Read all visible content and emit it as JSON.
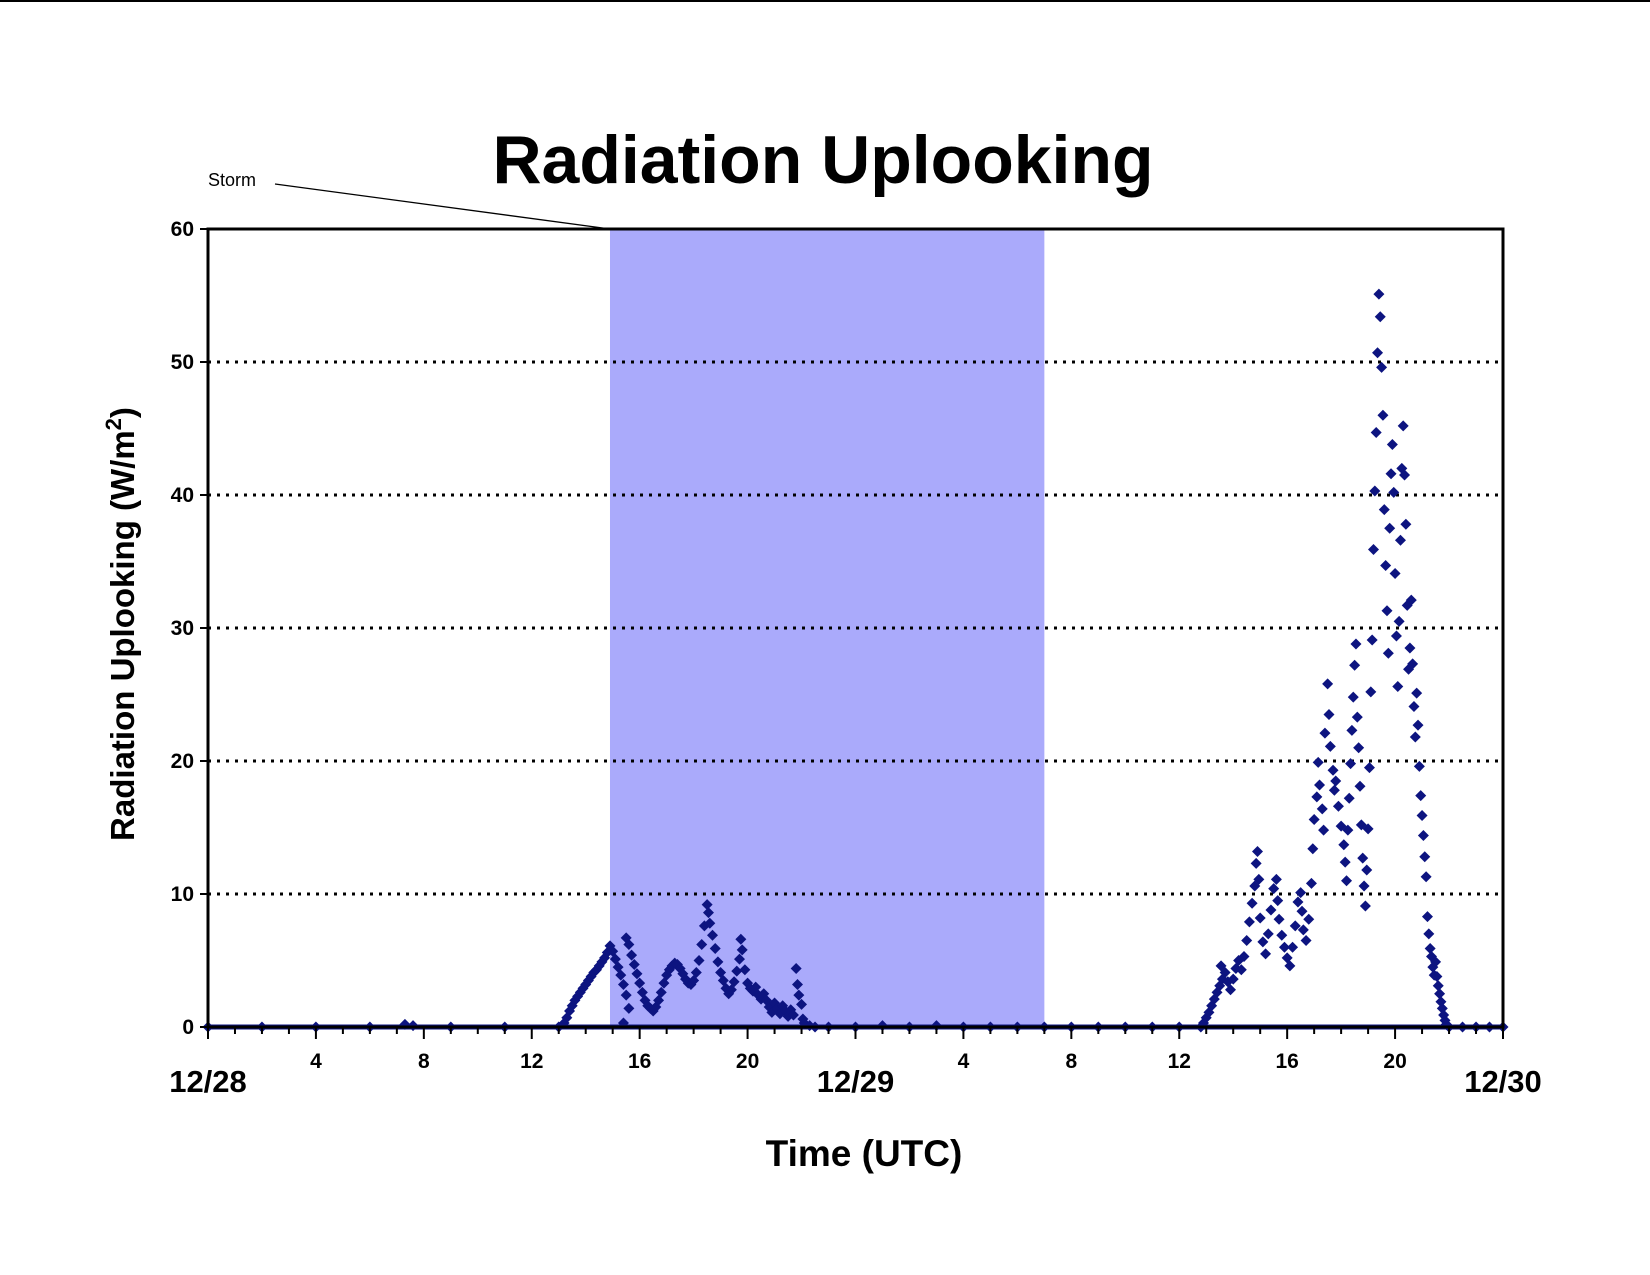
{
  "chart_data": {
    "type": "scatter",
    "title": "Radiation Uplooking",
    "xlabel": "Time (UTC)",
    "ylabel_main": "Radiation Uplooking (W/m",
    "ylabel_sup": "2",
    "ylabel_close": ")",
    "ylim": [
      0,
      60
    ],
    "yticks": [
      0,
      10,
      20,
      30,
      40,
      50,
      60
    ],
    "ygrid": [
      10,
      20,
      30,
      40,
      50
    ],
    "grid": "horizontal dotted",
    "x_unit": "hours since 12/28 00 UTC",
    "xlim": [
      0,
      48
    ],
    "date_labels": [
      {
        "x": 0,
        "label": "12/28"
      },
      {
        "x": 24,
        "label": "12/29"
      },
      {
        "x": 48,
        "label": "12/30"
      }
    ],
    "hour_labels": [
      {
        "x": 4,
        "label": "4"
      },
      {
        "x": 8,
        "label": "8"
      },
      {
        "x": 12,
        "label": "12"
      },
      {
        "x": 16,
        "label": "16"
      },
      {
        "x": 20,
        "label": "20"
      },
      {
        "x": 28,
        "label": "4"
      },
      {
        "x": 32,
        "label": "8"
      },
      {
        "x": 36,
        "label": "12"
      },
      {
        "x": 40,
        "label": "16"
      },
      {
        "x": 44,
        "label": "20"
      }
    ],
    "storm_band": {
      "label": "Storm",
      "x_start": 14.9,
      "x_end": 31.0
    },
    "colors": {
      "marker": "#0d1480",
      "storm_band": "#aaaafb",
      "axis": "#000000"
    },
    "series": [
      {
        "marker": "diamond",
        "points": [
          [
            0,
            0
          ],
          [
            2,
            0
          ],
          [
            4,
            0
          ],
          [
            6,
            0
          ],
          [
            7.3,
            0.2
          ],
          [
            7.6,
            0.1
          ],
          [
            9,
            0
          ],
          [
            11,
            0
          ],
          [
            13,
            0
          ],
          [
            13.2,
            0.3
          ],
          [
            13.3,
            0.7
          ],
          [
            13.4,
            1.2
          ],
          [
            13.5,
            1.6
          ],
          [
            13.6,
            2.0
          ],
          [
            13.7,
            2.3
          ],
          [
            13.8,
            2.6
          ],
          [
            13.9,
            2.9
          ],
          [
            14.0,
            3.2
          ],
          [
            14.1,
            3.5
          ],
          [
            14.2,
            3.8
          ],
          [
            14.3,
            4.1
          ],
          [
            14.4,
            4.3
          ],
          [
            14.5,
            4.6
          ],
          [
            14.6,
            4.9
          ],
          [
            14.7,
            5.2
          ],
          [
            14.8,
            5.6
          ],
          [
            14.9,
            6.1
          ],
          [
            15.0,
            5.7
          ],
          [
            15.1,
            5.1
          ],
          [
            15.2,
            4.5
          ],
          [
            15.3,
            3.9
          ],
          [
            15.4,
            3.2
          ],
          [
            15.5,
            2.4
          ],
          [
            15.6,
            1.4
          ],
          [
            15.4,
            0.3
          ],
          [
            15.5,
            6.7
          ],
          [
            15.6,
            6.2
          ],
          [
            15.7,
            5.4
          ],
          [
            15.8,
            4.7
          ],
          [
            15.9,
            4.0
          ],
          [
            16.0,
            3.3
          ],
          [
            16.1,
            2.6
          ],
          [
            16.2,
            2.0
          ],
          [
            16.3,
            1.6
          ],
          [
            16.4,
            1.4
          ],
          [
            16.5,
            1.2
          ],
          [
            16.6,
            1.5
          ],
          [
            16.7,
            2.0
          ],
          [
            16.8,
            2.6
          ],
          [
            16.9,
            3.3
          ],
          [
            17.0,
            3.9
          ],
          [
            17.1,
            4.3
          ],
          [
            17.2,
            4.6
          ],
          [
            17.3,
            4.8
          ],
          [
            17.4,
            4.7
          ],
          [
            17.5,
            4.4
          ],
          [
            17.6,
            4.0
          ],
          [
            17.7,
            3.6
          ],
          [
            17.8,
            3.3
          ],
          [
            17.9,
            3.2
          ],
          [
            18.0,
            3.5
          ],
          [
            18.1,
            4.1
          ],
          [
            18.2,
            5.0
          ],
          [
            18.3,
            6.2
          ],
          [
            18.4,
            7.6
          ],
          [
            18.5,
            9.2
          ],
          [
            18.55,
            8.6
          ],
          [
            18.6,
            7.8
          ],
          [
            18.7,
            6.9
          ],
          [
            18.8,
            5.9
          ],
          [
            18.9,
            4.9
          ],
          [
            19.0,
            4.1
          ],
          [
            19.1,
            3.5
          ],
          [
            19.2,
            2.9
          ],
          [
            19.3,
            2.5
          ],
          [
            19.4,
            2.8
          ],
          [
            19.5,
            3.4
          ],
          [
            19.6,
            4.2
          ],
          [
            19.7,
            5.1
          ],
          [
            19.75,
            6.6
          ],
          [
            19.8,
            5.8
          ],
          [
            19.9,
            4.3
          ],
          [
            20.0,
            3.3
          ],
          [
            20.1,
            2.9
          ],
          [
            20.2,
            2.7
          ],
          [
            20.3,
            3.0
          ],
          [
            20.4,
            2.4
          ],
          [
            20.5,
            2.1
          ],
          [
            20.6,
            2.5
          ],
          [
            20.7,
            2.0
          ],
          [
            20.8,
            1.5
          ],
          [
            20.9,
            1.1
          ],
          [
            21.0,
            1.8
          ],
          [
            21.1,
            1.4
          ],
          [
            21.2,
            1.0
          ],
          [
            21.3,
            1.6
          ],
          [
            21.4,
            1.2
          ],
          [
            21.5,
            0.8
          ],
          [
            21.6,
            1.3
          ],
          [
            21.7,
            0.9
          ],
          [
            21.8,
            4.4
          ],
          [
            21.85,
            3.2
          ],
          [
            21.9,
            2.4
          ],
          [
            22.0,
            1.7
          ],
          [
            22.05,
            0.6
          ],
          [
            22.1,
            0.3
          ],
          [
            22.3,
            0.1
          ],
          [
            22.5,
            0
          ],
          [
            23,
            0
          ],
          [
            24,
            0
          ],
          [
            25,
            0.1
          ],
          [
            26,
            0
          ],
          [
            27,
            0.1
          ],
          [
            28,
            0
          ],
          [
            29,
            0
          ],
          [
            30,
            0
          ],
          [
            31,
            0
          ],
          [
            32,
            0
          ],
          [
            33,
            0
          ],
          [
            34,
            0
          ],
          [
            35,
            0
          ],
          [
            36,
            0
          ],
          [
            36.8,
            0
          ],
          [
            36.9,
            0.3
          ],
          [
            37.0,
            0.7
          ],
          [
            37.1,
            1.1
          ],
          [
            37.2,
            1.6
          ],
          [
            37.3,
            2.1
          ],
          [
            37.4,
            2.6
          ],
          [
            37.5,
            3.1
          ],
          [
            37.6,
            3.6
          ],
          [
            37.7,
            4.1
          ],
          [
            37.55,
            4.6
          ],
          [
            37.8,
            3.4
          ],
          [
            37.9,
            2.8
          ],
          [
            38.0,
            3.6
          ],
          [
            38.1,
            4.4
          ],
          [
            38.2,
            5.0
          ],
          [
            38.3,
            4.3
          ],
          [
            38.4,
            5.3
          ],
          [
            38.5,
            6.5
          ],
          [
            38.6,
            7.9
          ],
          [
            38.7,
            9.3
          ],
          [
            38.8,
            10.6
          ],
          [
            38.85,
            12.3
          ],
          [
            38.9,
            13.2
          ],
          [
            38.95,
            11.1
          ],
          [
            39.0,
            8.2
          ],
          [
            39.1,
            6.4
          ],
          [
            39.2,
            5.5
          ],
          [
            39.3,
            7.0
          ],
          [
            39.4,
            8.8
          ],
          [
            39.5,
            10.4
          ],
          [
            39.6,
            11.1
          ],
          [
            39.65,
            9.5
          ],
          [
            39.7,
            8.1
          ],
          [
            39.8,
            6.9
          ],
          [
            39.9,
            6.0
          ],
          [
            40.0,
            5.2
          ],
          [
            40.1,
            4.6
          ],
          [
            40.2,
            6.0
          ],
          [
            40.3,
            7.6
          ],
          [
            40.4,
            9.4
          ],
          [
            40.5,
            10.1
          ],
          [
            40.55,
            8.7
          ],
          [
            40.6,
            7.3
          ],
          [
            40.7,
            6.5
          ],
          [
            40.8,
            8.1
          ],
          [
            40.9,
            10.8
          ],
          [
            40.95,
            13.4
          ],
          [
            41.0,
            15.6
          ],
          [
            41.1,
            17.3
          ],
          [
            41.15,
            19.9
          ],
          [
            41.2,
            18.2
          ],
          [
            41.3,
            16.4
          ],
          [
            41.35,
            14.8
          ],
          [
            41.4,
            22.1
          ],
          [
            41.5,
            25.8
          ],
          [
            41.55,
            23.5
          ],
          [
            41.6,
            21.1
          ],
          [
            41.7,
            19.3
          ],
          [
            41.75,
            17.8
          ],
          [
            41.8,
            18.5
          ],
          [
            41.9,
            16.6
          ],
          [
            42.0,
            15.1
          ],
          [
            42.1,
            13.7
          ],
          [
            42.15,
            12.4
          ],
          [
            42.2,
            11.0
          ],
          [
            42.25,
            14.8
          ],
          [
            42.3,
            17.2
          ],
          [
            42.35,
            19.8
          ],
          [
            42.4,
            22.3
          ],
          [
            42.45,
            24.8
          ],
          [
            42.5,
            27.2
          ],
          [
            42.55,
            28.8
          ],
          [
            42.6,
            23.3
          ],
          [
            42.65,
            21.0
          ],
          [
            42.7,
            18.1
          ],
          [
            42.75,
            15.2
          ],
          [
            42.8,
            12.7
          ],
          [
            42.85,
            10.6
          ],
          [
            42.9,
            9.1
          ],
          [
            42.95,
            11.8
          ],
          [
            43.0,
            14.9
          ],
          [
            43.05,
            19.5
          ],
          [
            43.1,
            25.2
          ],
          [
            43.15,
            29.1
          ],
          [
            43.2,
            35.9
          ],
          [
            43.25,
            40.3
          ],
          [
            43.3,
            44.7
          ],
          [
            43.35,
            50.7
          ],
          [
            43.4,
            55.1
          ],
          [
            43.45,
            53.4
          ],
          [
            43.5,
            49.6
          ],
          [
            43.55,
            46.0
          ],
          [
            43.6,
            38.9
          ],
          [
            43.65,
            34.7
          ],
          [
            43.7,
            31.3
          ],
          [
            43.75,
            28.1
          ],
          [
            43.8,
            37.5
          ],
          [
            43.85,
            41.6
          ],
          [
            43.9,
            43.8
          ],
          [
            43.95,
            40.2
          ],
          [
            44.0,
            34.1
          ],
          [
            44.05,
            29.4
          ],
          [
            44.1,
            25.6
          ],
          [
            44.15,
            30.5
          ],
          [
            44.2,
            36.6
          ],
          [
            44.25,
            42.0
          ],
          [
            44.3,
            45.2
          ],
          [
            44.35,
            41.5
          ],
          [
            44.4,
            37.8
          ],
          [
            44.45,
            31.7
          ],
          [
            44.5,
            26.9
          ],
          [
            44.55,
            28.5
          ],
          [
            44.6,
            32.1
          ],
          [
            44.65,
            27.3
          ],
          [
            44.7,
            24.1
          ],
          [
            44.75,
            21.8
          ],
          [
            44.8,
            25.1
          ],
          [
            44.85,
            22.7
          ],
          [
            44.9,
            19.6
          ],
          [
            44.95,
            17.4
          ],
          [
            45.0,
            15.9
          ],
          [
            45.05,
            14.4
          ],
          [
            45.1,
            12.8
          ],
          [
            45.15,
            11.3
          ],
          [
            45.2,
            8.3
          ],
          [
            45.25,
            7.0
          ],
          [
            45.3,
            5.9
          ],
          [
            45.35,
            5.3
          ],
          [
            45.4,
            4.5
          ],
          [
            45.45,
            3.9
          ],
          [
            45.5,
            4.9
          ],
          [
            45.55,
            3.8
          ],
          [
            45.6,
            3.1
          ],
          [
            45.65,
            2.5
          ],
          [
            45.7,
            1.9
          ],
          [
            45.75,
            1.4
          ],
          [
            45.8,
            0.9
          ],
          [
            45.85,
            0.5
          ],
          [
            45.9,
            0.2
          ],
          [
            46,
            0
          ],
          [
            46.5,
            0
          ],
          [
            47,
            0
          ],
          [
            47.5,
            0
          ],
          [
            48,
            0
          ]
        ]
      }
    ]
  }
}
